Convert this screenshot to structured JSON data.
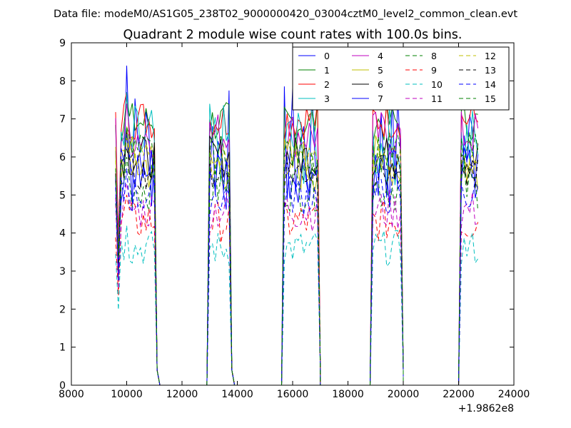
{
  "header": {
    "data_file": "Data file: modeM0/AS1G05_238T02_9000000420_03004cztM0_level2_common_clean.evt"
  },
  "chart_data": {
    "type": "line",
    "title": "Quadrant 2 module wise count rates with 100.0s bins.",
    "xlabel": "",
    "ylabel": "",
    "x_offset_label": "+1.9862e8",
    "xlim": [
      8000,
      24000
    ],
    "ylim": [
      0,
      9
    ],
    "xticks": [
      8000,
      10000,
      12000,
      14000,
      16000,
      18000,
      20000,
      22000,
      24000
    ],
    "yticks": [
      0,
      1,
      2,
      3,
      4,
      5,
      6,
      7,
      8,
      9
    ],
    "grid": false,
    "legend": "top-right, 4 columns",
    "segments": [
      {
        "start": 9600,
        "end": 11000,
        "fall": [
          11100,
          11200
        ]
      },
      {
        "start": 13000,
        "end": 13700,
        "rise": [
          12900,
          13000
        ],
        "fall": [
          13800,
          13900
        ]
      },
      {
        "start": 15700,
        "end": 16900,
        "rise": [
          15600,
          15700
        ],
        "fall": [
          17000,
          17000
        ]
      },
      {
        "start": 18900,
        "end": 19900,
        "rise": [
          18800,
          18900
        ],
        "fall": [
          20000,
          20000
        ]
      },
      {
        "start": 22100,
        "end": 22700,
        "rise": [
          22000,
          22100
        ]
      }
    ],
    "series": [
      {
        "name": "0",
        "color": "#0000ff",
        "dash": "solid",
        "level": 6.2,
        "peak": 8.4
      },
      {
        "name": "1",
        "color": "#008000",
        "dash": "solid",
        "level": 6.9,
        "peak": 7.6
      },
      {
        "name": "2",
        "color": "#ff0000",
        "dash": "solid",
        "level": 7.0,
        "peak": 7.7
      },
      {
        "name": "3",
        "color": "#00bfbf",
        "dash": "solid",
        "level": 6.3,
        "peak": 7.7
      },
      {
        "name": "4",
        "color": "#bf00bf",
        "dash": "solid",
        "level": 6.6,
        "peak": 7.4
      },
      {
        "name": "5",
        "color": "#bfbf00",
        "dash": "solid",
        "level": 5.8,
        "peak": 6.8
      },
      {
        "name": "6",
        "color": "#000000",
        "dash": "solid",
        "level": 6.0,
        "peak": 6.7
      },
      {
        "name": "7",
        "color": "#0000ff",
        "dash": "solid",
        "level": 5.6,
        "peak": 6.6
      },
      {
        "name": "8",
        "color": "#008000",
        "dash": "dashed",
        "level": 5.2,
        "peak": 6.0
      },
      {
        "name": "9",
        "color": "#ff0000",
        "dash": "dashed",
        "level": 4.3,
        "peak": 5.0
      },
      {
        "name": "10",
        "color": "#00bfbf",
        "dash": "dashed",
        "level": 3.6,
        "peak": 4.2
      },
      {
        "name": "11",
        "color": "#bf00bf",
        "dash": "dashed",
        "level": 4.6,
        "peak": 5.3
      },
      {
        "name": "12",
        "color": "#bfbf00",
        "dash": "dashed",
        "level": 5.9,
        "peak": 6.5
      },
      {
        "name": "13",
        "color": "#000000",
        "dash": "dashed",
        "level": 5.6,
        "peak": 6.2
      },
      {
        "name": "14",
        "color": "#0000ff",
        "dash": "dashed",
        "level": 5.0,
        "peak": 5.7
      },
      {
        "name": "15",
        "color": "#008000",
        "dash": "dashed",
        "level": 6.1,
        "peak": 6.8
      }
    ]
  }
}
